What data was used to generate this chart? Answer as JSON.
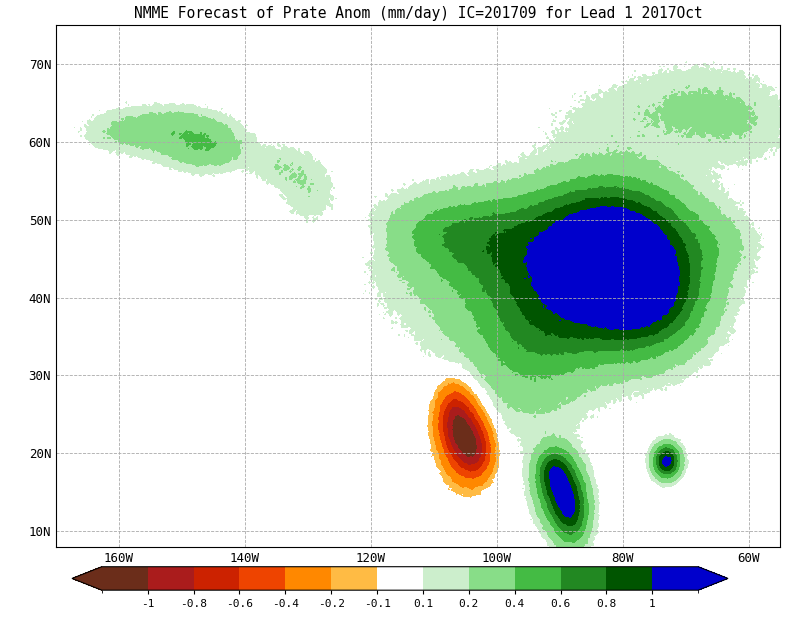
{
  "title": "NMME Forecast of Prate Anom (mm/day) IC=201709 for Lead 1 2017Oct",
  "title_fontsize": 10.5,
  "lon_min": -170,
  "lon_max": -55,
  "lat_min": 8,
  "lat_max": 75,
  "lon_ticks": [
    -160,
    -140,
    -120,
    -100,
    -80,
    -60
  ],
  "lat_ticks": [
    10,
    20,
    30,
    40,
    50,
    60,
    70
  ],
  "lon_labels": [
    "160W",
    "140W",
    "120W",
    "100W",
    "80W",
    "60W"
  ],
  "lat_labels": [
    "10N",
    "20N",
    "30N",
    "40N",
    "50N",
    "60N",
    "70N"
  ],
  "colorbar_ticks": [
    -1,
    -0.8,
    -0.6,
    -0.4,
    -0.2,
    -0.1,
    0.1,
    0.2,
    0.4,
    0.6,
    0.8,
    1
  ],
  "colorbar_labels": [
    "-1",
    "-0.8",
    "-0.6",
    "-0.4",
    "-0.2",
    "-0.1",
    "0.1",
    "0.2",
    "0.4",
    "0.6",
    "0.8",
    "1"
  ],
  "levels": [
    -1.5,
    -1.0,
    -0.8,
    -0.6,
    -0.4,
    -0.2,
    -0.1,
    0.1,
    0.2,
    0.4,
    0.6,
    0.8,
    1.0,
    1.5
  ],
  "cmap_colors": [
    "#6B2D1A",
    "#AA1C1C",
    "#CC2200",
    "#EE4400",
    "#FF8800",
    "#FFBB44",
    "#FFFFFF",
    "#CCEECC",
    "#88DD88",
    "#44BB44",
    "#228822",
    "#005500",
    "#0000CC"
  ],
  "background_color": "#D8EEF8",
  "grid_color": "#AAAAAA",
  "land_color": "#FFFFFF"
}
